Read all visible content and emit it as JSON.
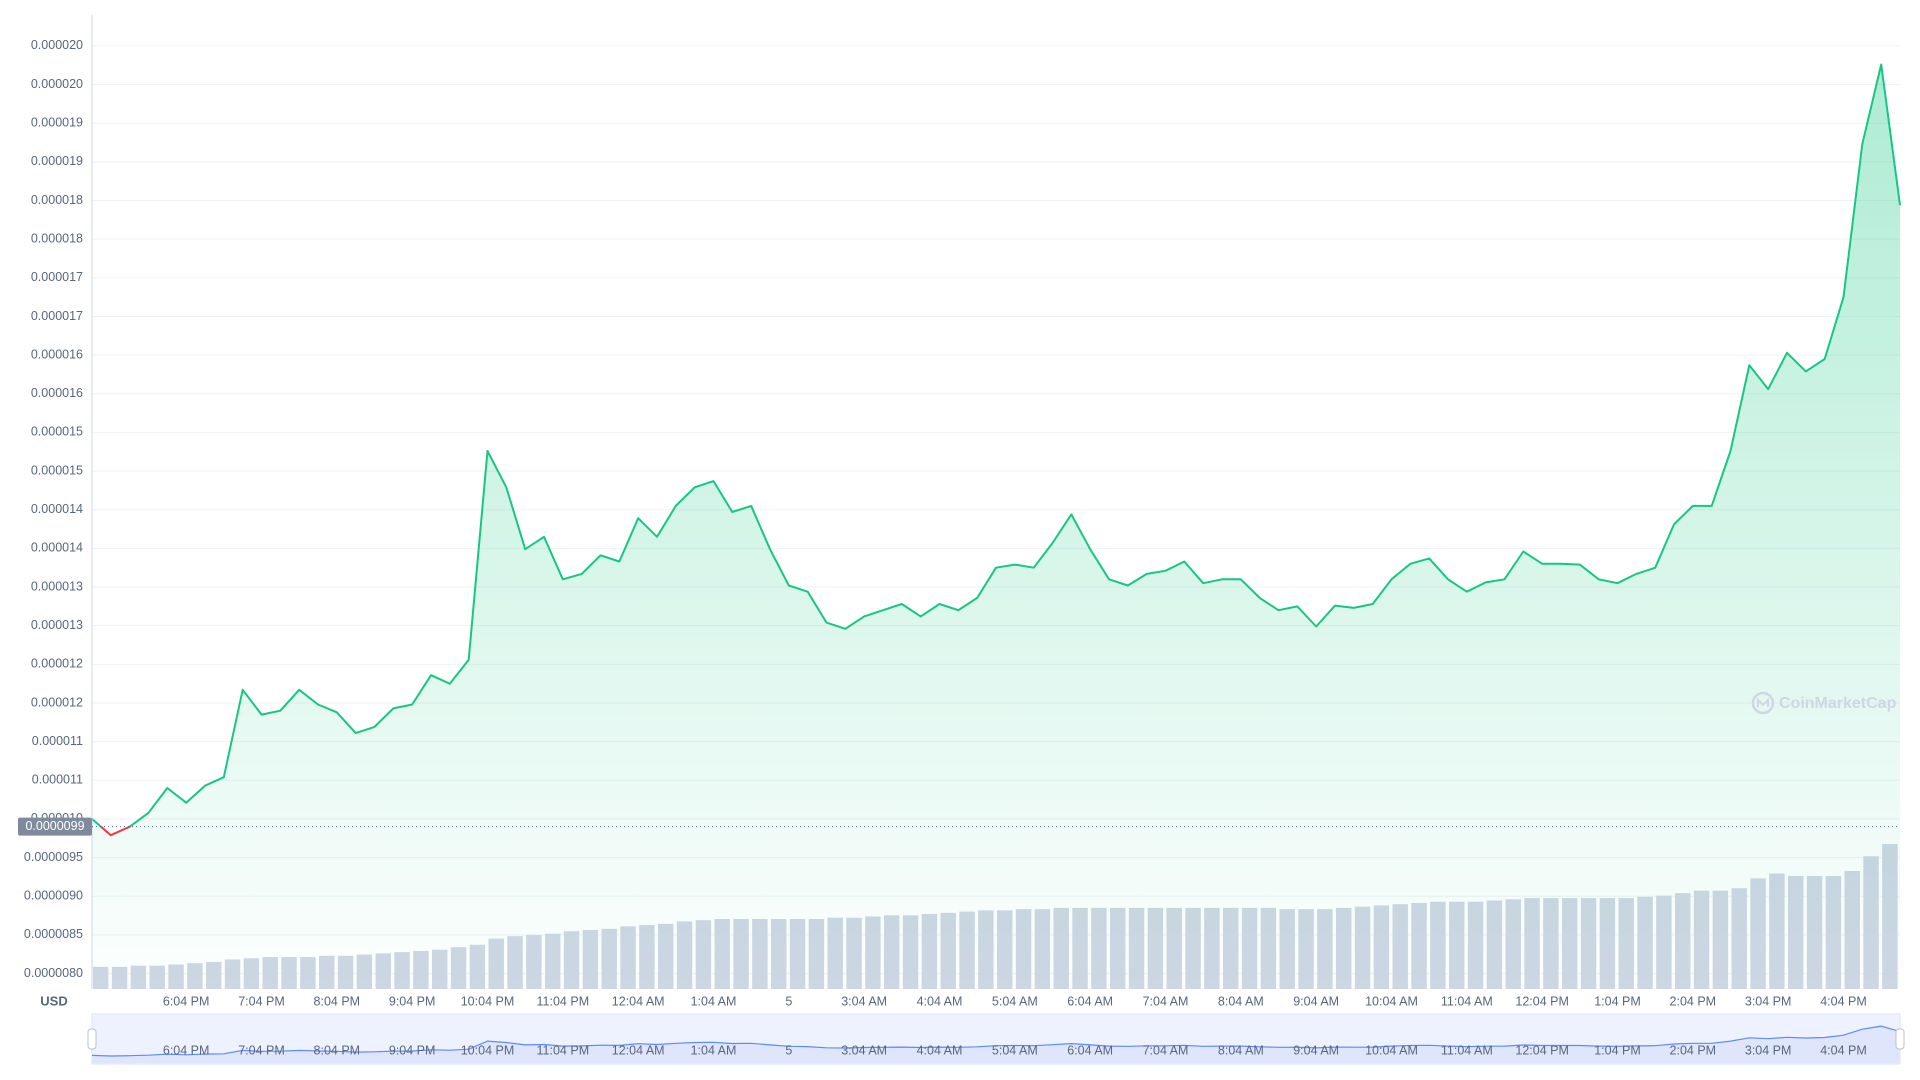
{
  "chart_data": {
    "type": "line",
    "color": "#16c784",
    "down_color": "#ea3943",
    "currency": "USD",
    "watermark": "CoinMarketCap",
    "current_price": {
      "value": 9.9e-06,
      "label": "0.0000099"
    },
    "categories": [
      null,
      null,
      null,
      null,
      null,
      "6:04 PM",
      null,
      null,
      null,
      "7:04 PM",
      null,
      null,
      null,
      "8:04 PM",
      null,
      null,
      null,
      "9:04 PM",
      null,
      null,
      null,
      "10:04 PM",
      null,
      null,
      null,
      "11:04 PM",
      null,
      null,
      null,
      "12:04 AM",
      null,
      null,
      null,
      "1:04 AM",
      null,
      null,
      null,
      "5",
      null,
      null,
      null,
      "3:04 AM",
      null,
      null,
      null,
      "4:04 AM",
      null,
      null,
      null,
      "5:04 AM",
      null,
      null,
      null,
      "6:04 AM",
      null,
      null,
      null,
      "7:04 AM",
      null,
      null,
      null,
      "8:04 AM",
      null,
      null,
      null,
      "9:04 AM",
      null,
      null,
      null,
      "10:04 AM",
      null,
      null,
      null,
      "11:04 AM",
      null,
      null,
      null,
      "12:04 PM",
      null,
      null,
      null,
      "1:04 PM",
      null,
      null,
      null,
      "2:04 PM",
      null,
      null,
      null,
      "3:04 PM",
      null,
      null,
      null,
      "4:04 PM",
      null,
      null,
      null
    ],
    "values": [
      1e-05,
      9.79e-06,
      9.9e-06,
      1.008e-05,
      1.04e-05,
      1.021e-05,
      1.043e-05,
      1.054e-05,
      1.167e-05,
      1.135e-05,
      1.14e-05,
      1.167e-05,
      1.148e-05,
      1.138e-05,
      1.111e-05,
      1.119e-05,
      1.143e-05,
      1.148e-05,
      1.186e-05,
      1.175e-05,
      1.206e-05,
      1.476e-05,
      1.429e-05,
      1.349e-05,
      1.365e-05,
      1.31e-05,
      1.317e-05,
      1.341e-05,
      1.333e-05,
      1.389e-05,
      1.365e-05,
      1.405e-05,
      1.429e-05,
      1.437e-05,
      1.397e-05,
      1.405e-05,
      1.349e-05,
      1.302e-05,
      1.294e-05,
      1.254e-05,
      1.246e-05,
      1.262e-05,
      1.27e-05,
      1.278e-05,
      1.262e-05,
      1.278e-05,
      1.27e-05,
      1.286e-05,
      1.325e-05,
      1.329e-05,
      1.325e-05,
      1.357e-05,
      1.394e-05,
      1.349e-05,
      1.31e-05,
      1.302e-05,
      1.317e-05,
      1.321e-05,
      1.333e-05,
      1.305e-05,
      1.31e-05,
      1.31e-05,
      1.286e-05,
      1.27e-05,
      1.275e-05,
      1.249e-05,
      1.276e-05,
      1.273e-05,
      1.278e-05,
      1.31e-05,
      1.33e-05,
      1.337e-05,
      1.31e-05,
      1.294e-05,
      1.306e-05,
      1.31e-05,
      1.346e-05,
      1.33e-05,
      1.33e-05,
      1.329e-05,
      1.31e-05,
      1.305e-05,
      1.317e-05,
      1.325e-05,
      1.381e-05,
      1.405e-05,
      1.405e-05,
      1.476e-05,
      1.587e-05,
      1.556e-05,
      1.603e-05,
      1.579e-05,
      1.595e-05,
      1.675e-05,
      1.873e-05,
      1.976e-05,
      1.794e-05
    ],
    "volume": {
      "color": "#cfd6e4",
      "values": [
        18,
        18,
        19,
        19,
        20,
        21,
        22,
        24,
        25,
        26,
        26,
        26,
        27,
        27,
        28,
        29,
        30,
        31,
        32,
        34,
        36,
        41,
        43,
        44,
        45,
        47,
        48,
        49,
        51,
        52,
        53,
        55,
        56,
        57,
        57,
        57,
        57,
        57,
        57,
        58,
        58,
        59,
        60,
        60,
        61,
        62,
        63,
        64,
        64,
        65,
        65,
        66,
        66,
        66,
        66,
        66,
        66,
        66,
        66,
        66,
        66,
        66,
        66,
        65,
        65,
        65,
        66,
        67,
        68,
        69,
        70,
        71,
        71,
        71,
        72,
        73,
        74,
        74,
        74,
        74,
        74,
        74,
        75,
        76,
        78,
        80,
        80,
        82,
        90,
        94,
        92,
        92,
        92,
        96,
        108,
        118,
        116
      ]
    },
    "ylim": [
      7.8e-06,
      2.04e-05
    ],
    "yticks": [
      {
        "value": 8e-06,
        "label": "0.0000080"
      },
      {
        "value": 8.5e-06,
        "label": "0.0000085"
      },
      {
        "value": 9e-06,
        "label": "0.0000090"
      },
      {
        "value": 9.5e-06,
        "label": "0.0000095"
      },
      {
        "value": 1e-05,
        "label": "0.000010"
      },
      {
        "value": 1.05e-05,
        "label": "0.000011"
      },
      {
        "value": 1.1e-05,
        "label": "0.000011"
      },
      {
        "value": 1.15e-05,
        "label": "0.000012"
      },
      {
        "value": 1.2e-05,
        "label": "0.000012"
      },
      {
        "value": 1.25e-05,
        "label": "0.000013"
      },
      {
        "value": 1.3e-05,
        "label": "0.000013"
      },
      {
        "value": 1.35e-05,
        "label": "0.000014"
      },
      {
        "value": 1.4e-05,
        "label": "0.000014"
      },
      {
        "value": 1.45e-05,
        "label": "0.000015"
      },
      {
        "value": 1.5e-05,
        "label": "0.000015"
      },
      {
        "value": 1.55e-05,
        "label": "0.000016"
      },
      {
        "value": 1.6e-05,
        "label": "0.000016"
      },
      {
        "value": 1.65e-05,
        "label": "0.000017"
      },
      {
        "value": 1.7e-05,
        "label": "0.000017"
      },
      {
        "value": 1.75e-05,
        "label": "0.000018"
      },
      {
        "value": 1.8e-05,
        "label": "0.000018"
      },
      {
        "value": 1.85e-05,
        "label": "0.000019"
      },
      {
        "value": 1.9e-05,
        "label": "0.000019"
      },
      {
        "value": 1.95e-05,
        "label": "0.000020"
      },
      {
        "value": 2e-05,
        "label": "0.000020"
      }
    ],
    "grid": true
  }
}
